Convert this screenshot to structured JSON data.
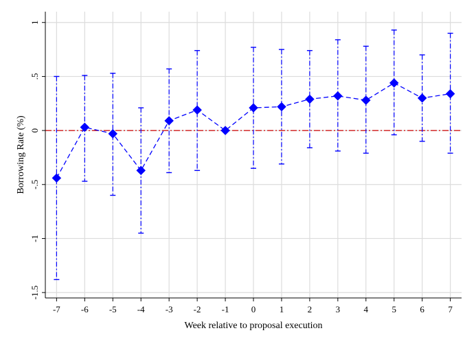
{
  "chart_data": {
    "type": "scatter",
    "xlabel": "Week relative to proposal execution",
    "ylabel": "Borrowing Rate (%)",
    "x": [
      -7,
      -6,
      -5,
      -4,
      -3,
      -2,
      -1,
      0,
      1,
      2,
      3,
      4,
      5,
      6,
      7
    ],
    "x_tick_labels": [
      "-7",
      "-6",
      "-5",
      "-4",
      "-3",
      "-2",
      "-1",
      "0",
      "1",
      "2",
      "3",
      "4",
      "5",
      "6",
      "7"
    ],
    "y_ticks": [
      -1.5,
      -1,
      -0.5,
      0,
      0.5,
      1
    ],
    "y_tick_labels": [
      "-1.5",
      "-1",
      "-.5",
      "0",
      ".5",
      "1"
    ],
    "ylim": [
      -1.55,
      1.1
    ],
    "xlim": [
      -7.4,
      7.4
    ],
    "grid": true,
    "reference_line": {
      "y": 0,
      "color": "#cc0000",
      "style": "dash-dot"
    },
    "series": [
      {
        "values": [
          -0.44,
          0.03,
          -0.03,
          -0.37,
          0.09,
          0.19,
          0.0,
          0.21,
          0.22,
          0.29,
          0.32,
          0.28,
          0.44,
          0.3,
          0.34
        ],
        "ci_lower": [
          -1.38,
          -0.47,
          -0.6,
          -0.95,
          -0.39,
          -0.37,
          0.0,
          -0.35,
          -0.31,
          -0.16,
          -0.19,
          -0.21,
          -0.04,
          -0.1,
          -0.21
        ],
        "ci_upper": [
          0.5,
          0.51,
          0.53,
          0.21,
          0.57,
          0.74,
          0.0,
          0.77,
          0.75,
          0.74,
          0.84,
          0.78,
          0.93,
          0.7,
          0.9
        ],
        "color": "#0000ff",
        "marker": "diamond",
        "line_style": "dashed"
      }
    ]
  }
}
